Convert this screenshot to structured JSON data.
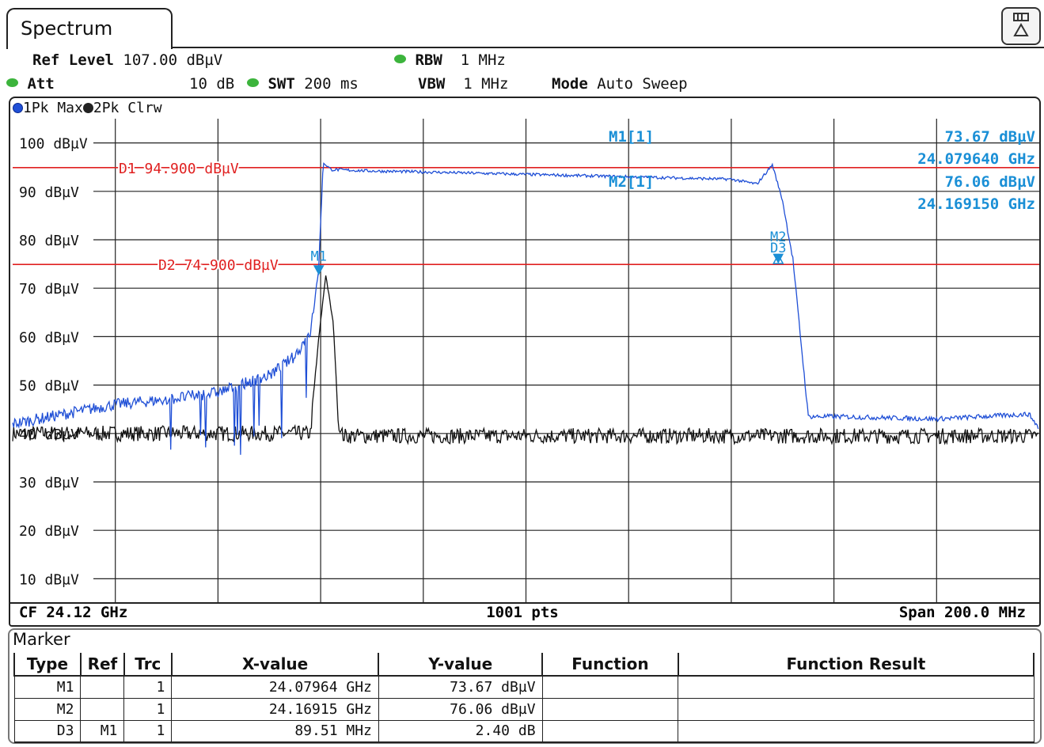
{
  "window": {
    "tab_title": "Spectrum"
  },
  "header": {
    "ref_level_label": "Ref Level",
    "ref_level_value": "107.00 dBµV",
    "att_label": "Att",
    "att_value": "10 dB",
    "swt_label": "SWT",
    "swt_value": "200 ms",
    "rbw_label": "RBW",
    "rbw_value": "1 MHz",
    "vbw_label": "VBW",
    "vbw_value": "1 MHz",
    "mode_label": "Mode",
    "mode_value": "Auto Sweep"
  },
  "traces": [
    {
      "label": "1Pk Max",
      "color": "#1f4fd6"
    },
    {
      "label": "2Pk Clrw",
      "color": "#111111"
    }
  ],
  "footer": {
    "cf": "CF 24.12 GHz",
    "pts": "1001 pts",
    "span": "Span 200.0 MHz"
  },
  "marker_readout": {
    "m1_label": "M1[1]",
    "m1_level": "73.67 dBµV",
    "m1_freq": "24.079640 GHz",
    "m2_label": "M2[1]",
    "m2_level": "76.06 dBµV",
    "m2_freq": "24.169150 GHz"
  },
  "display_lines": [
    {
      "label": "D1  94.900 dBµV",
      "level": 94.9
    },
    {
      "label": "D2  74.900 dBµV",
      "level": 74.9
    }
  ],
  "plot_markers": [
    {
      "label": "M1",
      "freq_mhz": 24079.64,
      "level": 73.67
    },
    {
      "label": "M2",
      "freq_mhz": 24169.15,
      "level": 76.06
    },
    {
      "label": "D3",
      "freq_mhz": 24169.15,
      "level": 76.07
    }
  ],
  "colors": {
    "marker": "#1a8fd6",
    "display_line": "#e02020",
    "trace1": "#1f4fd6",
    "trace2": "#111111"
  },
  "chart_data": {
    "type": "line",
    "x_range_mhz": [
      24020,
      24220
    ],
    "ylim": [
      5,
      105
    ],
    "y_ticks": [
      100,
      90,
      80,
      70,
      60,
      50,
      40,
      30,
      20,
      10
    ],
    "y_tick_labels": [
      "100 dBµV",
      "90 dBµV",
      "80 dBµV",
      "70 dBµV",
      "60 dBµV",
      "50 dBµV",
      "40 dBµV",
      "30 dBµV",
      "20 dBµV",
      "10 dBµV"
    ],
    "grid": true,
    "series": [
      {
        "name": "1Pk Max",
        "x": [
          24020,
          24030,
          24040,
          24050,
          24060,
          24070,
          24075,
          24078,
          24079.6,
          24080.5,
          24082,
          24090,
          24100,
          24120,
          24140,
          24160,
          24165,
          24168,
          24170,
          24172,
          24175,
          24180,
          24200,
          24218,
          24220
        ],
        "y": [
          42,
          44,
          46,
          47,
          48.5,
          52,
          56,
          61,
          73.67,
          96,
          94.5,
          94.2,
          94,
          93.5,
          93,
          92.5,
          91.5,
          95.5,
          88,
          76.06,
          43.5,
          43.5,
          43,
          44,
          41
        ]
      },
      {
        "name": "2Pk Clrw",
        "x": [
          24020,
          24060,
          24078,
          24079.5,
          24081,
          24082.5,
          24083.5,
          24084.5,
          24100,
          24150,
          24200,
          24220
        ],
        "y": [
          40,
          40,
          40,
          58,
          72.5,
          62,
          40.5,
          39.5,
          39.5,
          39.5,
          39.5,
          39.5
        ]
      }
    ]
  },
  "marker_table": {
    "title": "Marker",
    "headers": [
      "Type",
      "Ref",
      "Trc",
      "X-value",
      "Y-value",
      "Function",
      "Function Result"
    ],
    "rows": [
      [
        "M1",
        "",
        "1",
        "24.07964 GHz",
        "73.67 dBµV",
        "",
        ""
      ],
      [
        "M2",
        "",
        "1",
        "24.16915 GHz",
        "76.06 dBµV",
        "",
        ""
      ],
      [
        "D3",
        "M1",
        "1",
        "89.51 MHz",
        "2.40 dB",
        "",
        ""
      ]
    ]
  }
}
